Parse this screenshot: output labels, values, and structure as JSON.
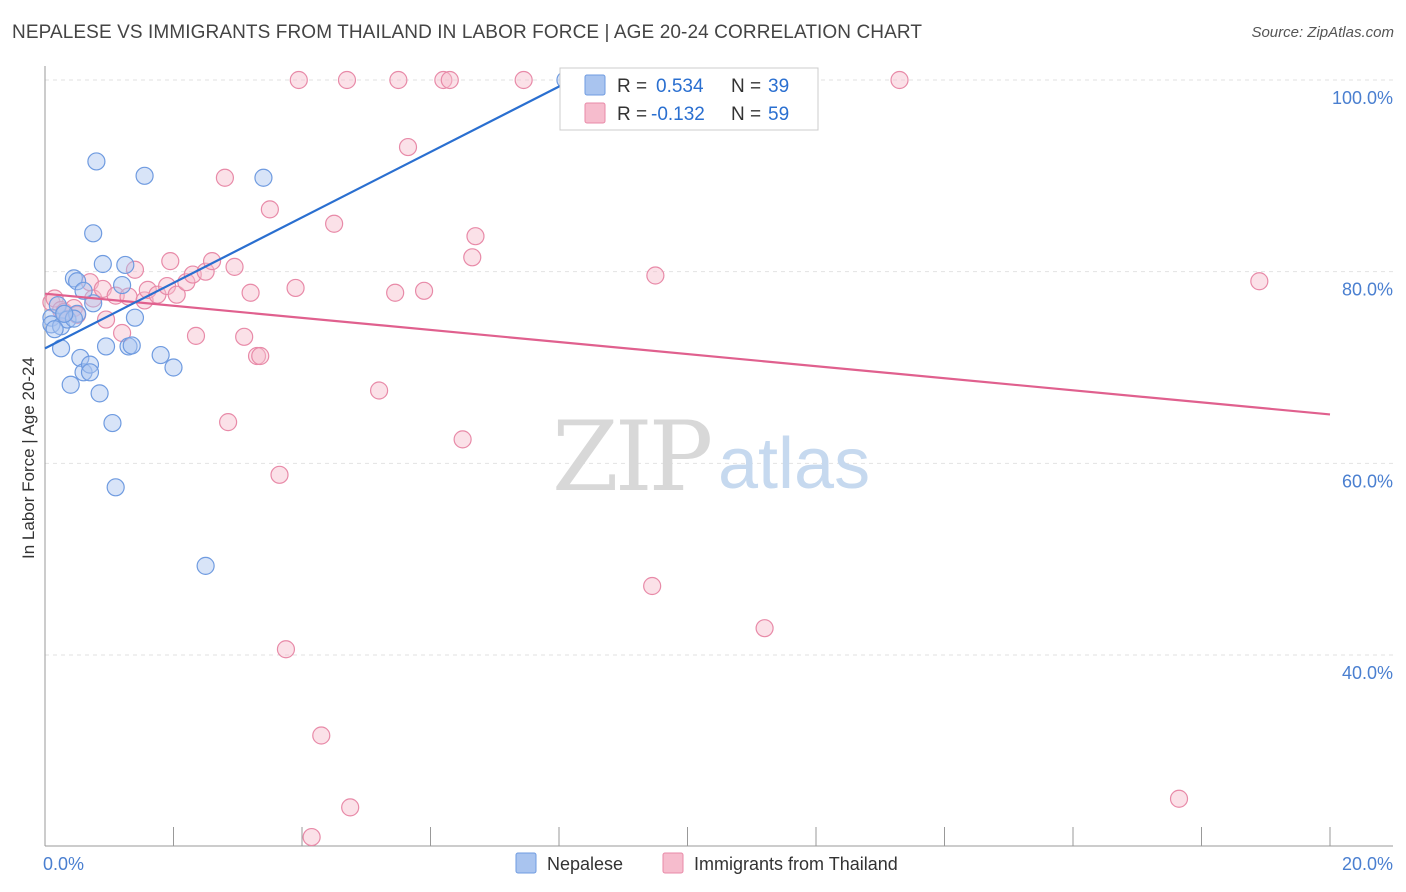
{
  "title": "NEPALESE VS IMMIGRANTS FROM THAILAND IN LABOR FORCE | AGE 20-24 CORRELATION CHART",
  "source": "Source: ZipAtlas.com",
  "watermark": {
    "zip": "ZIP",
    "atlas": "atlas"
  },
  "colors": {
    "nepalese_fill": "#a9c4ef",
    "nepalese_stroke": "#6f9be0",
    "nepalese_line": "#2a6fd0",
    "thai_fill": "#f6bccd",
    "thai_stroke": "#e88aa8",
    "thai_line": "#e0608e",
    "tick_text": "#4a7fd0",
    "grid": "#e2e2e2"
  },
  "legend": {
    "r_label": "R =",
    "n_label": "N =",
    "nepalese": {
      "r": "0.534",
      "n": "39"
    },
    "thai": {
      "r": "-0.132",
      "n": "59"
    }
  },
  "chart_data": {
    "type": "scatter",
    "title": "NEPALESE VS IMMIGRANTS FROM THAILAND IN LABOR FORCE | AGE 20-24 CORRELATION CHART",
    "xlabel": "",
    "ylabel": "In Labor Force | Age 20-24",
    "xlim": [
      0,
      20
    ],
    "ylim": [
      19,
      102
    ],
    "x_tick_labels": [
      "0.0%",
      "20.0%"
    ],
    "y_ticks": [
      40,
      60,
      80,
      100
    ],
    "y_tick_labels": [
      "40.0%",
      "60.0%",
      "80.0%",
      "100.0%"
    ],
    "grid": true,
    "legend_position": "top-center",
    "series": [
      {
        "name": "Nepalese",
        "r": 0.534,
        "n": 39,
        "trend": {
          "x0": 0.0,
          "y0": 72.0,
          "x1": 8.2,
          "y1": 100.0
        },
        "points": [
          [
            0.1,
            75.2
          ],
          [
            0.1,
            74.5
          ],
          [
            0.2,
            76.5
          ],
          [
            0.25,
            72.0
          ],
          [
            0.25,
            74.3
          ],
          [
            0.3,
            75.6
          ],
          [
            0.35,
            75.0
          ],
          [
            0.4,
            68.2
          ],
          [
            0.45,
            79.3
          ],
          [
            0.5,
            79.0
          ],
          [
            0.5,
            75.6
          ],
          [
            0.55,
            71.0
          ],
          [
            0.6,
            69.5
          ],
          [
            0.7,
            70.3
          ],
          [
            0.7,
            69.5
          ],
          [
            0.75,
            76.7
          ],
          [
            0.75,
            84.0
          ],
          [
            0.8,
            91.5
          ],
          [
            0.85,
            67.3
          ],
          [
            0.9,
            80.8
          ],
          [
            0.95,
            72.2
          ],
          [
            1.05,
            64.2
          ],
          [
            1.1,
            57.5
          ],
          [
            1.2,
            78.6
          ],
          [
            1.25,
            80.7
          ],
          [
            1.3,
            72.2
          ],
          [
            1.35,
            72.3
          ],
          [
            1.4,
            75.2
          ],
          [
            1.55,
            90.0
          ],
          [
            1.8,
            71.3
          ],
          [
            2.0,
            70.0
          ],
          [
            2.5,
            49.3
          ],
          [
            3.4,
            89.8
          ],
          [
            8.1,
            100.0
          ],
          [
            8.15,
            100.0
          ],
          [
            0.15,
            74.0
          ],
          [
            0.45,
            75.1
          ],
          [
            0.6,
            78.0
          ],
          [
            0.3,
            75.6
          ]
        ]
      },
      {
        "name": "Immigrants from Thailand",
        "r": -0.132,
        "n": 59,
        "trend": {
          "x0": 0.0,
          "y0": 77.7,
          "x1": 20.0,
          "y1": 65.1
        },
        "points": [
          [
            0.1,
            76.8
          ],
          [
            0.15,
            77.2
          ],
          [
            0.25,
            76.0
          ],
          [
            0.3,
            75.8
          ],
          [
            0.45,
            76.2
          ],
          [
            0.5,
            75.5
          ],
          [
            0.7,
            78.9
          ],
          [
            0.75,
            77.2
          ],
          [
            0.9,
            78.2
          ],
          [
            0.95,
            75.0
          ],
          [
            1.1,
            77.5
          ],
          [
            1.2,
            73.6
          ],
          [
            1.3,
            77.4
          ],
          [
            1.4,
            80.2
          ],
          [
            1.55,
            77.0
          ],
          [
            1.6,
            78.1
          ],
          [
            1.75,
            77.6
          ],
          [
            1.9,
            78.5
          ],
          [
            1.95,
            81.1
          ],
          [
            2.05,
            77.6
          ],
          [
            2.2,
            78.9
          ],
          [
            2.3,
            79.7
          ],
          [
            2.35,
            73.3
          ],
          [
            2.5,
            80.0
          ],
          [
            2.6,
            81.1
          ],
          [
            2.8,
            89.8
          ],
          [
            2.85,
            64.3
          ],
          [
            2.95,
            80.5
          ],
          [
            3.1,
            73.2
          ],
          [
            3.2,
            77.8
          ],
          [
            3.3,
            71.2
          ],
          [
            3.35,
            71.2
          ],
          [
            3.5,
            86.5
          ],
          [
            3.65,
            58.8
          ],
          [
            3.75,
            40.6
          ],
          [
            3.9,
            78.3
          ],
          [
            3.95,
            100.0
          ],
          [
            4.15,
            21.0
          ],
          [
            4.3,
            31.6
          ],
          [
            4.5,
            85.0
          ],
          [
            4.7,
            100.0
          ],
          [
            4.75,
            24.1
          ],
          [
            5.2,
            67.6
          ],
          [
            5.45,
            77.8
          ],
          [
            5.5,
            100.0
          ],
          [
            5.65,
            93.0
          ],
          [
            5.9,
            78.0
          ],
          [
            6.2,
            100.0
          ],
          [
            6.3,
            100.0
          ],
          [
            6.5,
            62.5
          ],
          [
            6.65,
            81.5
          ],
          [
            6.7,
            83.7
          ],
          [
            7.45,
            100.0
          ],
          [
            9.45,
            47.2
          ],
          [
            9.5,
            79.6
          ],
          [
            11.2,
            42.8
          ],
          [
            13.3,
            100.0
          ],
          [
            17.65,
            25.0
          ],
          [
            18.9,
            79.0
          ]
        ]
      }
    ]
  },
  "bottom_legend": {
    "nepalese": "Nepalese",
    "thai": "Immigrants from Thailand"
  }
}
